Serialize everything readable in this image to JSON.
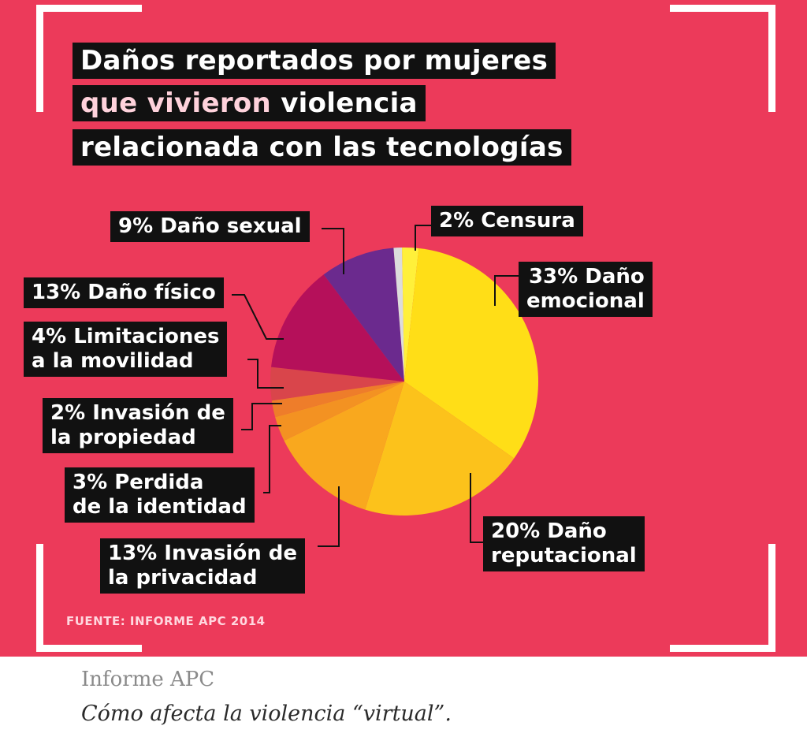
{
  "title": {
    "line1": "Daños reportados por mujeres",
    "line2_highlight": "que vivieron",
    "line2_rest": " violencia",
    "line3": "relacionada con las tecnologías"
  },
  "chart_data": {
    "type": "pie",
    "title": "Daños reportados por mujeres que vivieron violencia relacionada con las tecnologías",
    "slices": [
      {
        "label": "Censura",
        "value": 2,
        "color": "#fff03a",
        "display": [
          "2% Censura"
        ]
      },
      {
        "label": "Daño emocional",
        "value": 33,
        "color": "#ffde17",
        "display": [
          "33% Daño",
          "emocional"
        ]
      },
      {
        "label": "Daño reputacional",
        "value": 20,
        "color": "#fcc21b",
        "display": [
          "20% Daño",
          "reputacional"
        ]
      },
      {
        "label": "Invasión de la privacidad",
        "value": 13,
        "color": "#f9a81e",
        "display": [
          "13% Invasión de",
          "la privacidad"
        ]
      },
      {
        "label": "Perdida de la identidad",
        "value": 3,
        "color": "#f39222",
        "display": [
          "3% Perdida",
          "de la identidad"
        ]
      },
      {
        "label": "Invasión de la propiedad",
        "value": 2,
        "color": "#ee7d2a",
        "display": [
          "2% Invasión de",
          "la propiedad"
        ]
      },
      {
        "label": "Limitaciones a la movilidad",
        "value": 4,
        "color": "#d9454b",
        "display": [
          "4% Limitaciones",
          "a la movilidad"
        ]
      },
      {
        "label": "Daño físico",
        "value": 13,
        "color": "#b5105a",
        "display": [
          "13% Daño físico"
        ]
      },
      {
        "label": "Daño sexual",
        "value": 9,
        "color": "#6b2a8e",
        "display": [
          "9% Daño sexual"
        ]
      },
      {
        "label": "",
        "value": 1,
        "color": "#dcdcdc",
        "display": []
      }
    ]
  },
  "source": "FUENTE: INFORME APC 2014",
  "caption": {
    "title": "Informe APC",
    "text": "Cómo afecta la violencia “virtual”."
  }
}
